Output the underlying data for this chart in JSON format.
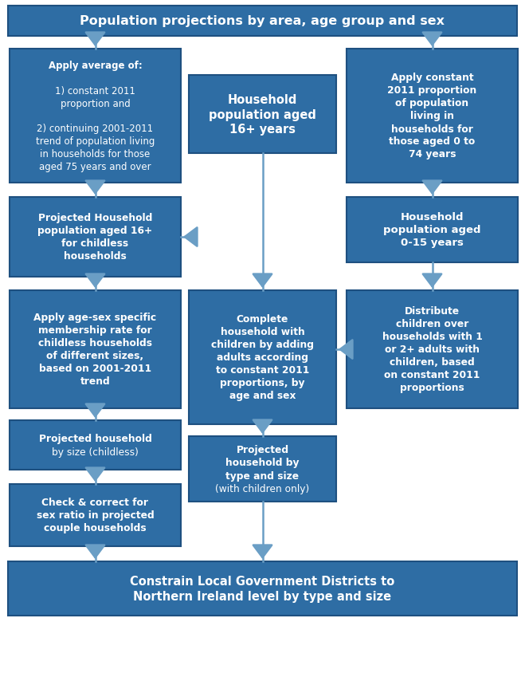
{
  "bg_color": "#ffffff",
  "box_fill": "#2e6da4",
  "box_edge": "#1e5080",
  "text_color": "#ffffff",
  "arrow_color": "#6a9ec5",
  "figsize": [
    6.59,
    8.45
  ],
  "dpi": 100,
  "boxes": {
    "top": {
      "text": "Population projections by area, age group and sex",
      "fontsize": 11.5,
      "bold": true
    },
    "apply_avg": {
      "text_parts": [
        {
          "text": "Apply average of:",
          "bold": true
        },
        {
          "text": "\n1) constant 2011\nproportion and\n\n2) continuing 2001-2011\ntrend of population living\nin households for those\naged 75 years and over",
          "bold": false
        }
      ],
      "fontsize": 8.5
    },
    "hh_pop_16": {
      "text": "Household\npopulation aged\n16+ years",
      "fontsize": 10.5,
      "bold": true
    },
    "apply_const": {
      "text": "Apply constant\n2011 proportion\nof population\nliving in\nhouseholds for\nthose aged 0 to\n74 years",
      "fontsize": 8.8,
      "bold": true
    },
    "proj_hh_16": {
      "text": "Projected Household\npopulation aged 16+\nfor childless\nhouseholds",
      "fontsize": 8.8,
      "bold": true
    },
    "hh_pop_015": {
      "text": "Household\npopulation aged\n0-15 years",
      "fontsize": 9.5,
      "bold": true
    },
    "apply_age_sex": {
      "text": "Apply age-sex specific\nmembership rate for\nchildless households\nof different sizes,\nbased on 2001-2011\ntrend",
      "fontsize": 8.8,
      "bold": true
    },
    "complete_hh": {
      "text": "Complete\nhousehold with\nchildren by adding\nadults according\nto constant 2011\nproportions, by\nage and sex",
      "fontsize": 8.8,
      "bold": true
    },
    "distribute": {
      "text": "Distribute\nchildren over\nhouseholds with 1\nor 2+ adults with\nchildren, based\non constant 2011\nproportions",
      "fontsize": 8.8,
      "bold": true
    },
    "proj_by_size": {
      "text_parts": [
        {
          "text": "Projected household\nby size ",
          "bold": true
        },
        {
          "text": "(childless)",
          "bold": false
        }
      ],
      "fontsize": 8.8
    },
    "proj_type_size": {
      "text_parts": [
        {
          "text": "Projected\nhousehold by\ntype and size\n",
          "bold": true
        },
        {
          "text": "(with children only)",
          "bold": false
        }
      ],
      "fontsize": 8.8
    },
    "check_correct": {
      "text": "Check & correct for\nsex ratio in projected\ncouple households",
      "fontsize": 8.8,
      "bold": true
    },
    "constrain": {
      "text": "Constrain Local Government Districts to\nNorthern Ireland level by type and size",
      "fontsize": 10.5,
      "bold": true
    }
  }
}
